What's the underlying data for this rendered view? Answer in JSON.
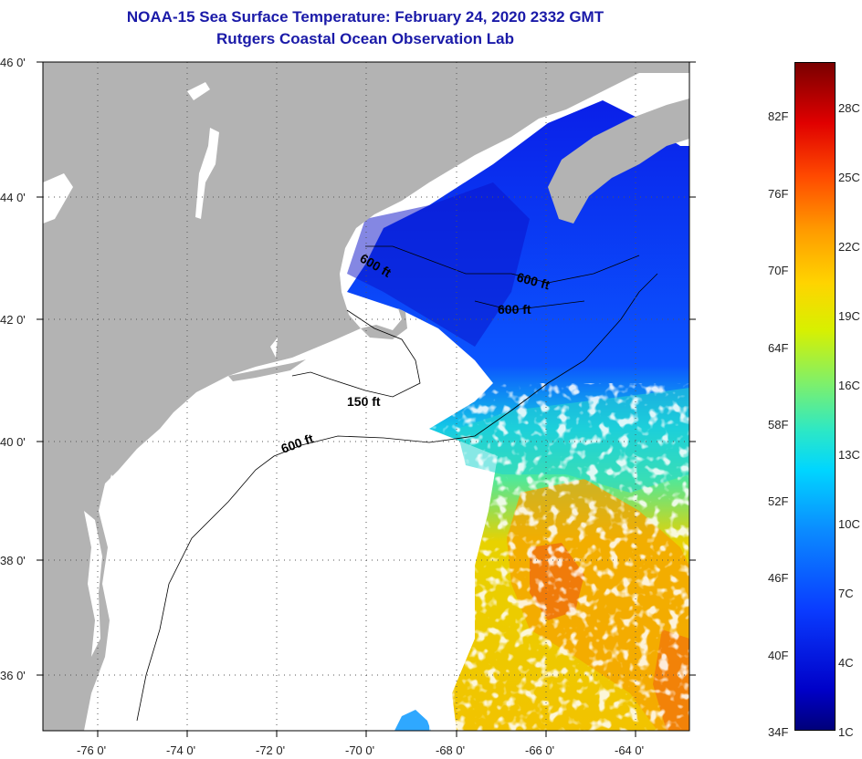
{
  "header": {
    "title": "NOAA-15 Sea Surface Temperature:  February 24, 2020 2332 GMT",
    "subtitle": "Rutgers Coastal Ocean Observation Lab"
  },
  "map": {
    "lon_labels": [
      "-76 0'",
      "-74 0'",
      "-72 0'",
      "-70 0'",
      "-68 0'",
      "-66 0'",
      "-64 0'"
    ],
    "lat_labels": [
      "46 0'",
      "44 0'",
      "42 0'",
      "40 0'",
      "38 0'",
      "36 0'"
    ],
    "contours": [
      "600 ft",
      "600 ft",
      "600 ft",
      "150 ft",
      "600 ft"
    ]
  },
  "colorbar": {
    "fahrenheit": [
      "82F",
      "76F",
      "70F",
      "64F",
      "58F",
      "52F",
      "46F",
      "40F",
      "34F"
    ],
    "celsius": [
      "28C",
      "25C",
      "22C",
      "19C",
      "16C",
      "13C",
      "10C",
      "7C",
      "4C",
      "1C"
    ]
  },
  "colors": {
    "land": "#b3b3b3",
    "ocean_nodata": "#ffffff",
    "title": "#1a1aa8"
  }
}
